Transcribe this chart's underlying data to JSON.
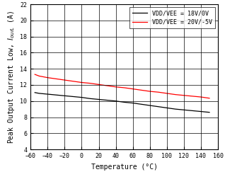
{
  "xlabel": "Temperature (°C)",
  "ylabel": "Peak Output Current Low, Iₒᵤᵣ (A)",
  "xlim": [
    -60,
    160
  ],
  "ylim": [
    4,
    22
  ],
  "xticks": [
    -60,
    -40,
    -20,
    0,
    20,
    40,
    60,
    80,
    100,
    120,
    140,
    160
  ],
  "yticks": [
    4,
    6,
    8,
    10,
    12,
    14,
    16,
    18,
    20,
    22
  ],
  "line1_label": "VDD/VEE = 18V/0V",
  "line1_color": "#000000",
  "line2_label": "VDD/VEE = 20V/-5V",
  "line2_color": "#ff0000",
  "line1_x": [
    -55,
    -50,
    -40,
    -30,
    -20,
    -10,
    0,
    10,
    20,
    30,
    40,
    50,
    60,
    70,
    80,
    90,
    100,
    110,
    120,
    130,
    140,
    150
  ],
  "line1_y": [
    11.05,
    10.95,
    10.85,
    10.75,
    10.65,
    10.55,
    10.45,
    10.3,
    10.2,
    10.1,
    10.0,
    9.85,
    9.75,
    9.6,
    9.45,
    9.3,
    9.15,
    9.0,
    8.9,
    8.8,
    8.7,
    8.6
  ],
  "line2_x": [
    -55,
    -50,
    -40,
    -30,
    -20,
    -10,
    0,
    10,
    20,
    30,
    40,
    50,
    60,
    70,
    80,
    90,
    100,
    110,
    120,
    130,
    140,
    150
  ],
  "line2_y": [
    13.3,
    13.1,
    12.9,
    12.75,
    12.6,
    12.45,
    12.3,
    12.2,
    12.05,
    11.9,
    11.75,
    11.65,
    11.5,
    11.35,
    11.2,
    11.1,
    10.95,
    10.8,
    10.7,
    10.6,
    10.5,
    10.35
  ],
  "legend_loc": "upper right",
  "tick_fontsize": 6,
  "label_fontsize": 7,
  "legend_fontsize": 6,
  "linewidth": 0.9
}
